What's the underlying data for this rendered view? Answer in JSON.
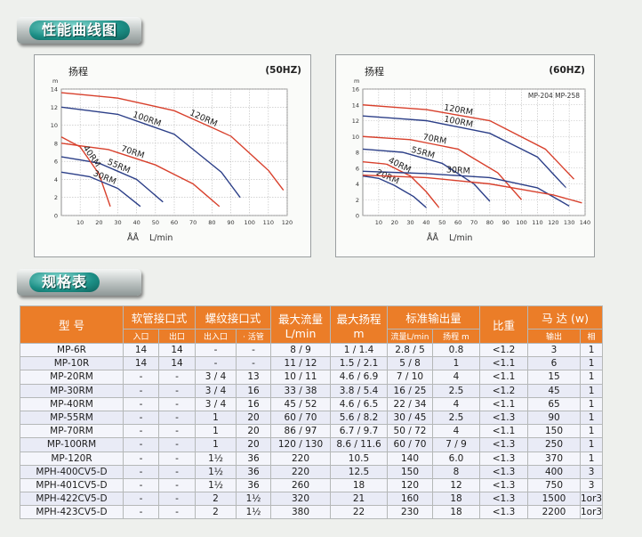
{
  "section1_title": "性能曲线图",
  "section2_title": "规格表",
  "chart_data": [
    {
      "type": "line",
      "frequency_label": "(50HZ)",
      "ylabel": "扬程",
      "y_unit": "m",
      "xlabel_prefix": "ÅÅ",
      "xlabel": "L/min",
      "xlim": [
        0,
        120
      ],
      "ylim": [
        0,
        14
      ],
      "xticks": [
        "10",
        "20",
        "30",
        "40",
        "50",
        "60",
        "70",
        "80",
        "90",
        "100",
        "110",
        "120"
      ],
      "yticks": [
        "0",
        "2",
        "4",
        "6",
        "8",
        "10",
        "12",
        "14"
      ],
      "grid": true,
      "series": [
        {
          "name": "120RM",
          "color": "#d8402c",
          "x": [
            0,
            30,
            60,
            90,
            110,
            118
          ],
          "y": [
            13.6,
            13.0,
            11.6,
            8.8,
            5.0,
            2.8
          ]
        },
        {
          "name": "100RM",
          "color": "#2c3f88",
          "x": [
            0,
            30,
            60,
            85,
            95
          ],
          "y": [
            12.0,
            11.2,
            9.0,
            4.8,
            2.0
          ]
        },
        {
          "name": "70RM",
          "color": "#d8402c",
          "x": [
            0,
            25,
            50,
            70,
            84
          ],
          "y": [
            8.0,
            7.3,
            5.6,
            3.5,
            1.0
          ]
        },
        {
          "name": "55RM",
          "color": "#2c3f88",
          "x": [
            0,
            20,
            40,
            54
          ],
          "y": [
            6.5,
            5.8,
            4.0,
            1.5
          ]
        },
        {
          "name": "40RM",
          "color": "#d8402c",
          "x": [
            0,
            10,
            20,
            26
          ],
          "y": [
            8.7,
            7.6,
            4.6,
            1.0
          ]
        },
        {
          "name": "30RM",
          "color": "#2c3f88",
          "x": [
            0,
            15,
            30,
            42
          ],
          "y": [
            4.8,
            4.3,
            3.0,
            1.0
          ]
        }
      ]
    },
    {
      "type": "line",
      "frequency_label": "(60HZ)",
      "annotation": "MP-204  MP-258",
      "ylabel": "扬程",
      "y_unit": "m",
      "xlabel_prefix": "ÅÅ",
      "xlabel": "L/min",
      "xlim": [
        0,
        140
      ],
      "ylim": [
        0,
        16
      ],
      "xticks": [
        "10",
        "20",
        "30",
        "40",
        "50",
        "60",
        "70",
        "80",
        "90",
        "100",
        "110",
        "120",
        "130",
        "140"
      ],
      "yticks": [
        "0",
        "2",
        "4",
        "6",
        "8",
        "10",
        "12",
        "14",
        "16"
      ],
      "grid": true,
      "series": [
        {
          "name": "120RM",
          "color": "#d8402c",
          "x": [
            0,
            40,
            80,
            115,
            133
          ],
          "y": [
            14.0,
            13.4,
            12.0,
            8.4,
            4.6
          ]
        },
        {
          "name": "100RM",
          "color": "#2c3f88",
          "x": [
            0,
            40,
            80,
            110,
            128
          ],
          "y": [
            12.6,
            12.0,
            10.4,
            7.4,
            3.5
          ]
        },
        {
          "name": "70RM",
          "color": "#d8402c",
          "x": [
            0,
            30,
            60,
            85,
            100
          ],
          "y": [
            10.0,
            9.6,
            8.4,
            5.4,
            2.0
          ]
        },
        {
          "name": "55RM",
          "color": "#2c3f88",
          "x": [
            0,
            25,
            50,
            70,
            80
          ],
          "y": [
            8.4,
            8.0,
            6.6,
            4.0,
            1.8
          ]
        },
        {
          "name": "40RM",
          "color": "#d8402c",
          "x": [
            0,
            15,
            30,
            40,
            48
          ],
          "y": [
            6.8,
            6.5,
            5.0,
            3.0,
            1.0
          ]
        },
        {
          "name": "30RM",
          "color": "#2c3f88",
          "x": [
            0,
            40,
            80,
            110,
            130
          ],
          "y": [
            5.6,
            5.3,
            4.8,
            3.5,
            1.2
          ]
        },
        {
          "name": "20RM",
          "color": "#2c3f88",
          "x": [
            0,
            10,
            20,
            32,
            40
          ],
          "y": [
            5.0,
            4.7,
            3.8,
            2.4,
            1.0
          ]
        },
        {
          "name": "",
          "color": "#d8402c",
          "x": [
            0,
            40,
            80,
            120,
            138
          ],
          "y": [
            5.1,
            4.8,
            4.0,
            2.6,
            1.6
          ]
        }
      ]
    }
  ],
  "table": {
    "header": {
      "model": "型 号",
      "hose": "软管接口式",
      "hose_in": "入口",
      "hose_out": "出口",
      "thread": "螺纹接口式",
      "thread_in": "出入口",
      "thread_live": "· 活管",
      "max_flow_1": "最大流量",
      "max_flow_2": "L/min",
      "max_head_1": "最大扬程",
      "max_head_2": "m",
      "std_out": "标准输出量",
      "std_flow": "流量L/min",
      "std_head": "扬程 m",
      "sg": "比重",
      "motor": "马 达 (w)",
      "motor_out": "输出",
      "motor_phase": "相"
    },
    "rows": [
      [
        "MP-6R",
        "14",
        "14",
        "-",
        "-",
        "8 / 9",
        "1 / 1.4",
        "2.8 / 5",
        "0.8",
        "<1.2",
        "3",
        "1"
      ],
      [
        "MP-10R",
        "14",
        "14",
        "-",
        "-",
        "11 / 12",
        "1.5 / 2.1",
        "5 / 8",
        "1",
        "<1.1",
        "6",
        "1"
      ],
      [
        "MP-20RM",
        "-",
        "-",
        "3 / 4",
        "13",
        "10 / 11",
        "4.6 / 6.9",
        "7 / 10",
        "4",
        "<1.1",
        "15",
        "1"
      ],
      [
        "MP-30RM",
        "-",
        "-",
        "3 / 4",
        "16",
        "33 / 38",
        "3.8 / 5.4",
        "16 / 25",
        "2.5",
        "<1.2",
        "45",
        "1"
      ],
      [
        "MP-40RM",
        "-",
        "-",
        "3 / 4",
        "16",
        "45 / 52",
        "4.6 / 6.5",
        "22 / 34",
        "4",
        "<1.1",
        "65",
        "1"
      ],
      [
        "MP-55RM",
        "-",
        "-",
        "1",
        "20",
        "60 / 70",
        "5.6 / 8.2",
        "30 / 45",
        "2.5",
        "<1.3",
        "90",
        "1"
      ],
      [
        "MP-70RM",
        "-",
        "-",
        "1",
        "20",
        "86 / 97",
        "6.7 / 9.7",
        "50 / 72",
        "4",
        "<1.1",
        "150",
        "1"
      ],
      [
        "MP-100RM",
        "-",
        "-",
        "1",
        "20",
        "120 / 130",
        "8.6 / 11.6",
        "60 / 70",
        "7 / 9",
        "<1.3",
        "250",
        "1"
      ],
      [
        "MP-120R",
        "-",
        "-",
        "1½",
        "36",
        "220",
        "10.5",
        "140",
        "6.0",
        "<1.3",
        "370",
        "1"
      ],
      [
        "MPH-400CV5-D",
        "-",
        "-",
        "1½",
        "36",
        "220",
        "12.5",
        "150",
        "8",
        "<1.3",
        "400",
        "3"
      ],
      [
        "MPH-401CV5-D",
        "-",
        "-",
        "1½",
        "36",
        "260",
        "18",
        "120",
        "12",
        "<1.3",
        "750",
        "3"
      ],
      [
        "MPH-422CV5-D",
        "-",
        "-",
        "2",
        "1½",
        "320",
        "21",
        "160",
        "18",
        "<1.3",
        "1500",
        "1or3"
      ],
      [
        "MPH-423CV5-D",
        "-",
        "-",
        "2",
        "1½",
        "380",
        "22",
        "230",
        "18",
        "<1.3",
        "2200",
        "1or3"
      ]
    ]
  }
}
